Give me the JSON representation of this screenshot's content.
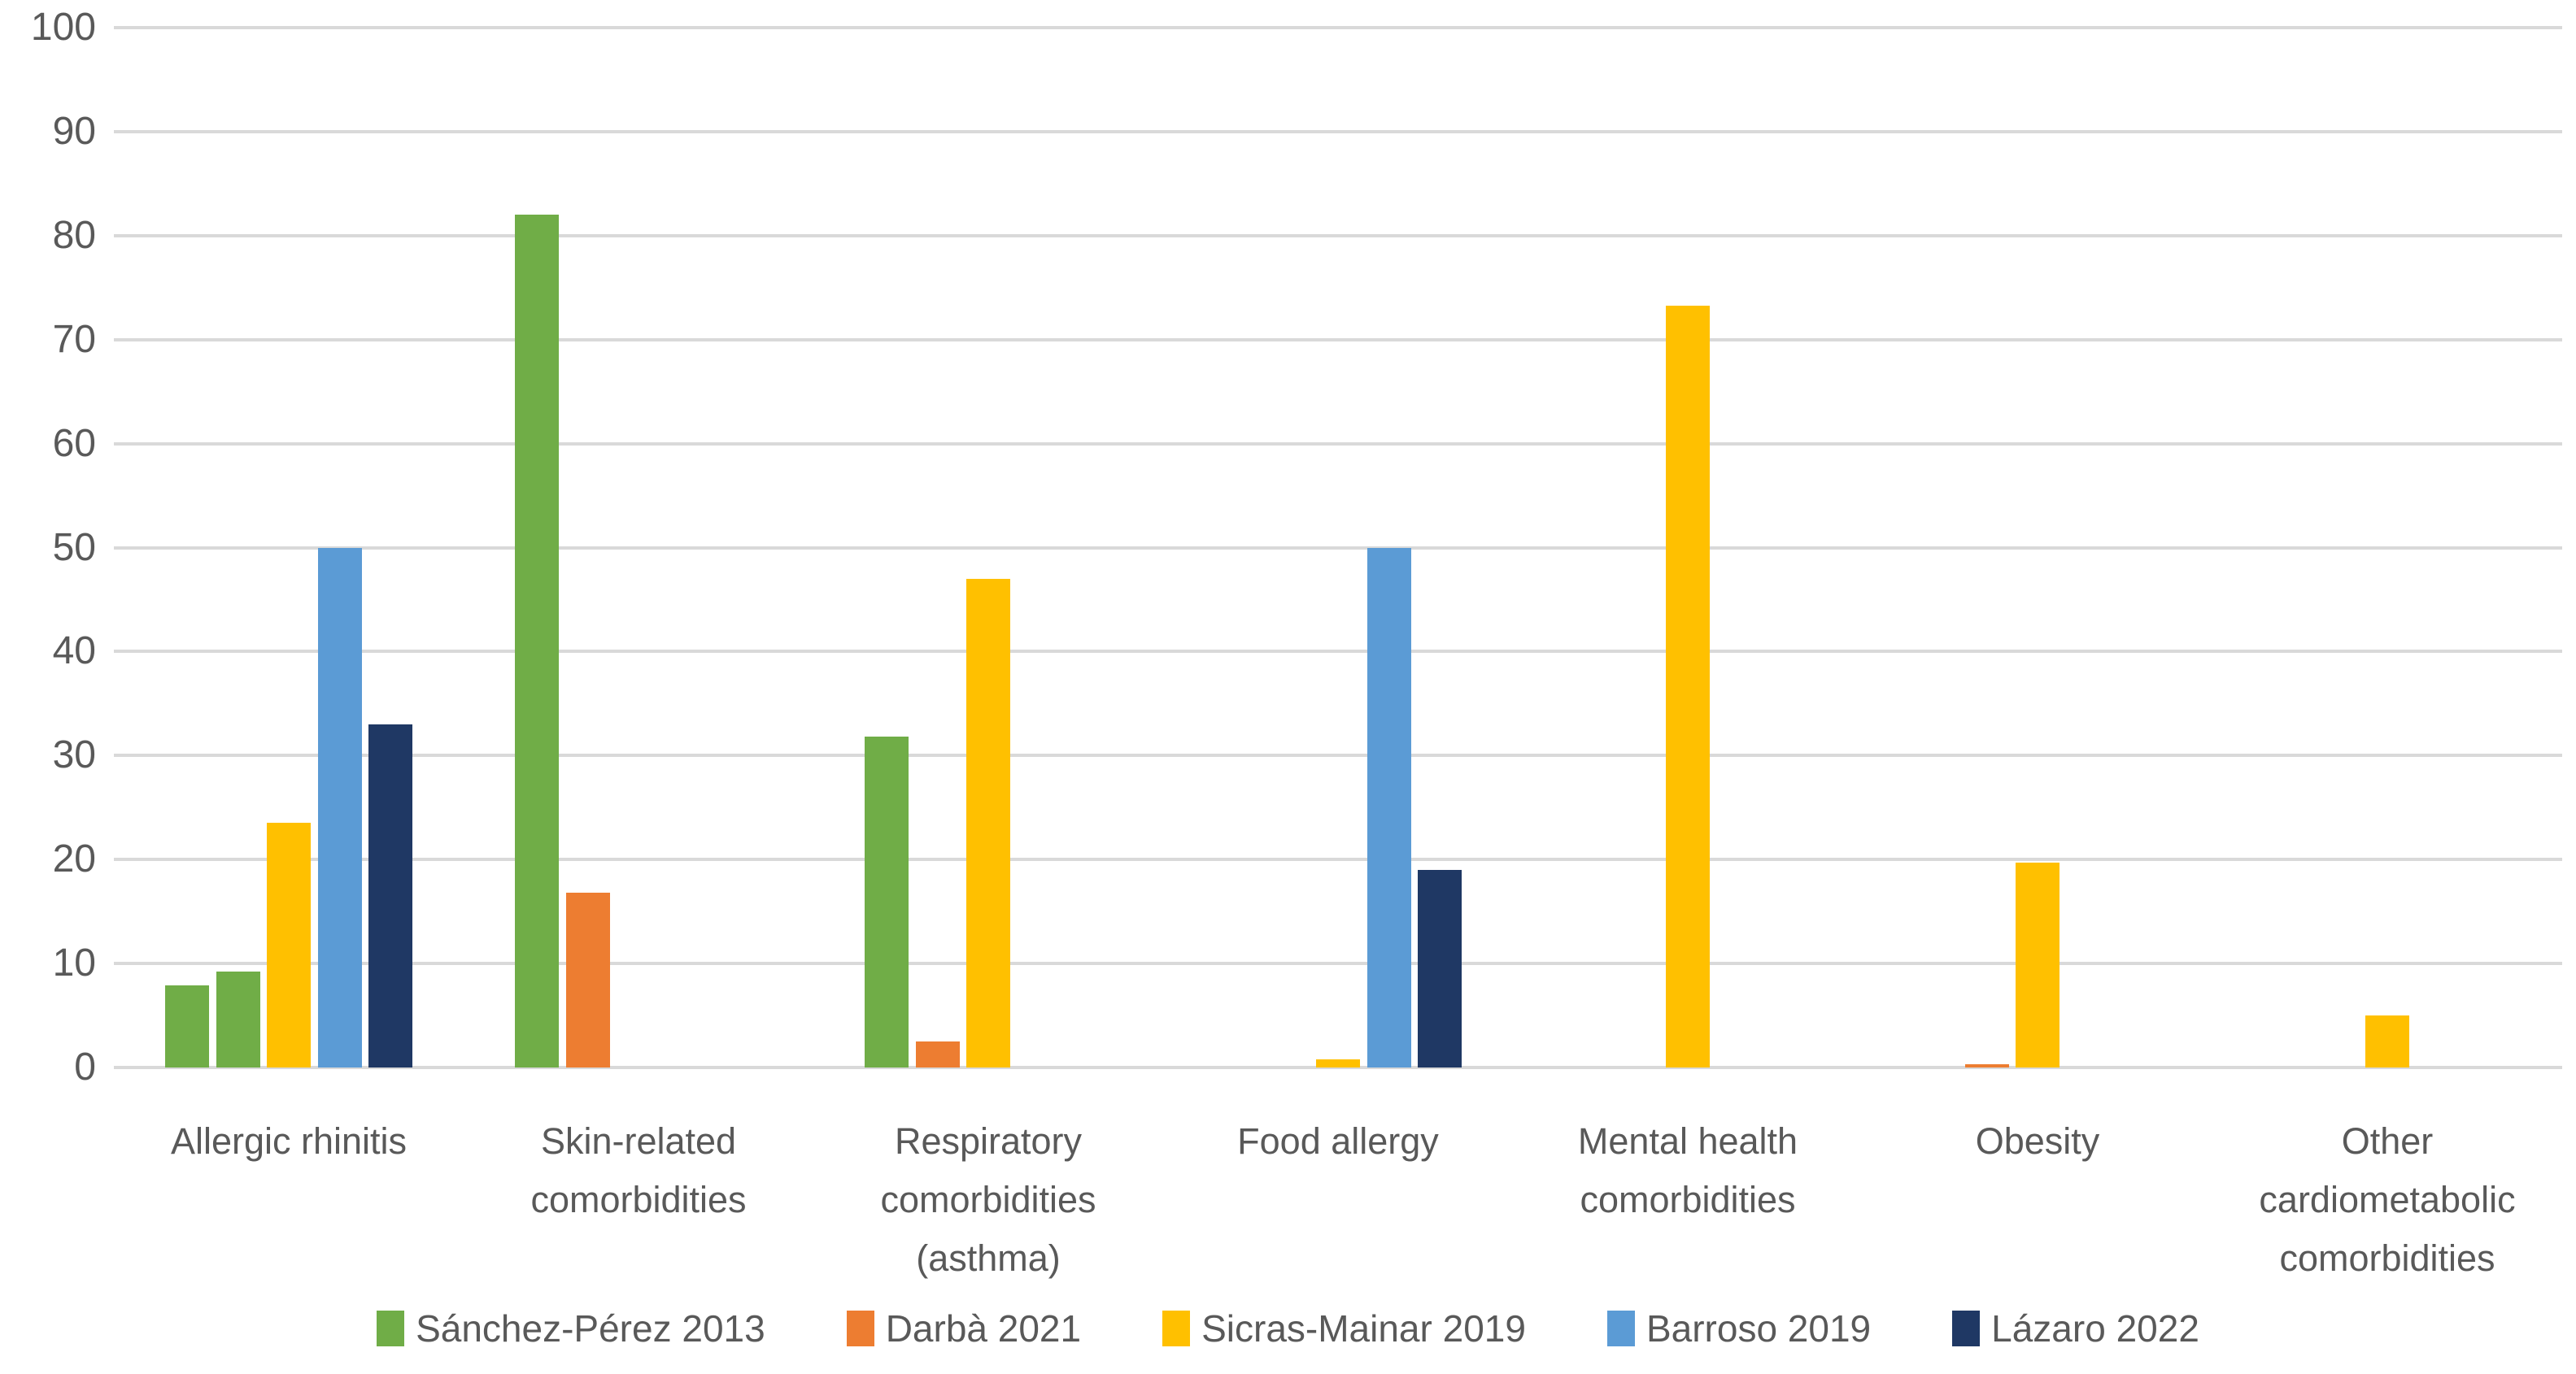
{
  "chart_data": {
    "type": "bar",
    "title": "",
    "xlabel": "",
    "ylabel": "",
    "ylim": [
      0,
      100
    ],
    "ytick_step": 10,
    "grid": true,
    "legend_position": "bottom",
    "colors": {
      "gridline": "#D9D9D9",
      "axis_text": "#595959",
      "background": "#FFFFFF"
    },
    "series": [
      {
        "name": "Sánchez-Pérez 2013",
        "color": "#70AD47"
      },
      {
        "name": "Darbà 2021",
        "color": "#ED7D31"
      },
      {
        "name": "Sicras-Mainar 2019",
        "color": "#FFC000"
      },
      {
        "name": "Barroso 2019",
        "color": "#5B9BD5"
      },
      {
        "name": "Lázaro 2022",
        "color": "#1F3864"
      }
    ],
    "categories": [
      {
        "label": "Allergic rhinitis",
        "bars": [
          {
            "slot": 0,
            "series": 0,
            "value": 7.9
          },
          {
            "slot": 1,
            "series": 0,
            "value": 9.2
          },
          {
            "slot": 2,
            "series": 2,
            "value": 23.5
          },
          {
            "slot": 3,
            "series": 3,
            "value": 50
          },
          {
            "slot": 4,
            "series": 4,
            "value": 33
          }
        ]
      },
      {
        "label": "Skin-related\ncomorbidities",
        "bars": [
          {
            "slot": 0,
            "series": 0,
            "value": 82
          },
          {
            "slot": 1,
            "series": 1,
            "value": 16.8
          }
        ]
      },
      {
        "label": "Respiratory\ncomorbidities\n(asthma)",
        "bars": [
          {
            "slot": 0,
            "series": 0,
            "value": 31.8
          },
          {
            "slot": 1,
            "series": 1,
            "value": 2.5
          },
          {
            "slot": 2,
            "series": 2,
            "value": 47
          }
        ]
      },
      {
        "label": "Food allergy",
        "bars": [
          {
            "slot": 2,
            "series": 2,
            "value": 0.8
          },
          {
            "slot": 3,
            "series": 3,
            "value": 50
          },
          {
            "slot": 4,
            "series": 4,
            "value": 19
          }
        ]
      },
      {
        "label": "Mental health\ncomorbidities",
        "bars": [
          {
            "slot": 2,
            "series": 2,
            "value": 73.3
          }
        ]
      },
      {
        "label": "Obesity",
        "bars": [
          {
            "slot": 1,
            "series": 1,
            "value": 0.3
          },
          {
            "slot": 2,
            "series": 2,
            "value": 19.7
          }
        ]
      },
      {
        "label": "Other\ncardiometabolic\ncomorbidities",
        "bars": [
          {
            "slot": 2,
            "series": 2,
            "value": 5
          }
        ]
      }
    ]
  }
}
